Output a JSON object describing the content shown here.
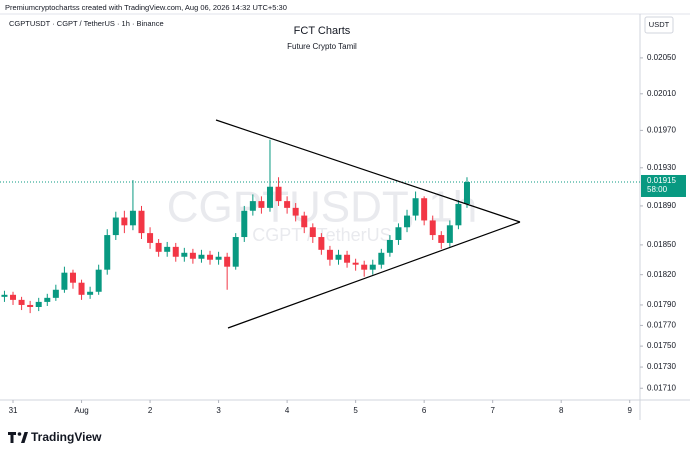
{
  "chart_data": {
    "type": "candlestick",
    "header": "Premiumcryptochartss created with TradingView.com, Aug 06, 2026 14:32 UTC+5:30",
    "symbol": "CGPTUSDT · CGPT / TetherUS · 1h · Binance",
    "title": "FCT Charts",
    "subtitle": "Future Crypto Tamil",
    "watermark": "CGPTUSDT, 1h",
    "watermark_sub": "CGPT / TetherUS",
    "currency": "USDT",
    "brand": "TradingView",
    "log_scale": true,
    "grid": false,
    "up_color": "#089981",
    "down_color": "#f23645",
    "xlim": [
      -0.19,
      9.15
    ],
    "xticks": [
      {
        "value": 0,
        "label": "31"
      },
      {
        "value": 1,
        "label": "Aug"
      },
      2,
      3,
      4,
      5,
      6,
      7,
      8,
      9
    ],
    "ylim": [
      0.01699,
      0.021
    ],
    "yticks": [
      {
        "value": 0.0205,
        "label": "0.02050"
      },
      {
        "value": 0.0201,
        "label": "0.02010"
      },
      {
        "value": 0.0197,
        "label": "0.01970"
      },
      {
        "value": 0.0193,
        "label": "0.01930"
      },
      {
        "value": 0.0189,
        "label": "0.01890"
      },
      {
        "value": 0.0185,
        "label": "0.01850"
      },
      {
        "value": 0.0182,
        "label": "0.01820"
      },
      {
        "value": 0.0179,
        "label": "0.01790"
      },
      {
        "value": 0.0177,
        "label": "0.01770"
      },
      {
        "value": 0.0175,
        "label": "0.01750"
      },
      {
        "value": 0.0173,
        "label": "0.01730"
      },
      {
        "value": 0.0171,
        "label": "0.01710"
      }
    ],
    "last_price": 0.01915,
    "last_price_label": "0.01915",
    "countdown": "58:00",
    "x": [
      -0.125,
      0,
      0.125,
      0.25,
      0.375,
      0.5,
      0.625,
      0.75,
      0.875,
      1,
      1.125,
      1.25,
      1.375,
      1.5,
      1.625,
      1.75,
      1.875,
      2,
      2.125,
      2.25,
      2.375,
      2.5,
      2.625,
      2.75,
      2.875,
      3,
      3.125,
      3.25,
      3.375,
      3.5,
      3.625,
      3.75,
      3.875,
      4,
      4.125,
      4.25,
      4.375,
      4.5,
      4.625,
      4.75,
      4.875,
      5,
      5.125,
      5.25,
      5.375,
      5.5,
      5.625,
      5.75,
      5.875,
      6,
      6.125,
      6.25,
      6.375,
      6.5,
      6.625
    ],
    "open": [
      0.01798,
      0.018,
      0.01795,
      0.0179,
      0.01788,
      0.01793,
      0.01797,
      0.01805,
      0.01822,
      0.01812,
      0.018,
      0.01803,
      0.01825,
      0.0186,
      0.01878,
      0.0187,
      0.01885,
      0.01862,
      0.01852,
      0.01843,
      0.01848,
      0.01838,
      0.01842,
      0.01836,
      0.0184,
      0.01835,
      0.01838,
      0.01828,
      0.01858,
      0.01885,
      0.01895,
      0.01888,
      0.0191,
      0.01895,
      0.01888,
      0.0188,
      0.01868,
      0.01858,
      0.01845,
      0.01835,
      0.0184,
      0.01832,
      0.0183,
      0.01825,
      0.0183,
      0.01842,
      0.01855,
      0.01868,
      0.0188,
      0.01898,
      0.01875,
      0.0186,
      0.01852,
      0.0187,
      0.01892
    ],
    "high": [
      0.01804,
      0.01803,
      0.01798,
      0.01794,
      0.01797,
      0.01801,
      0.0181,
      0.01828,
      0.01825,
      0.01815,
      0.01808,
      0.0183,
      0.01866,
      0.01884,
      0.01885,
      0.01917,
      0.0189,
      0.01868,
      0.01856,
      0.01853,
      0.01852,
      0.01847,
      0.01846,
      0.01845,
      0.01844,
      0.01843,
      0.01842,
      0.01862,
      0.0189,
      0.01902,
      0.019,
      0.0196,
      0.0192,
      0.019,
      0.01893,
      0.01884,
      0.01872,
      0.01862,
      0.01849,
      0.01845,
      0.01844,
      0.01836,
      0.01834,
      0.01835,
      0.01846,
      0.0186,
      0.01872,
      0.01886,
      0.01905,
      0.019,
      0.0188,
      0.01864,
      0.01875,
      0.01896,
      0.0192
    ],
    "low": [
      0.01793,
      0.0179,
      0.01785,
      0.01782,
      0.01784,
      0.01789,
      0.01794,
      0.01802,
      0.01806,
      0.01795,
      0.01796,
      0.018,
      0.0182,
      0.01855,
      0.01862,
      0.01865,
      0.01856,
      0.01846,
      0.01838,
      0.01838,
      0.01833,
      0.01833,
      0.01831,
      0.01832,
      0.0183,
      0.0183,
      0.01805,
      0.01825,
      0.01853,
      0.0188,
      0.01882,
      0.01884,
      0.0189,
      0.01882,
      0.01874,
      0.01862,
      0.01852,
      0.0184,
      0.01829,
      0.0183,
      0.01827,
      0.01824,
      0.01818,
      0.0182,
      0.01826,
      0.01838,
      0.0185,
      0.01863,
      0.01875,
      0.0187,
      0.01855,
      0.01846,
      0.01848,
      0.01866,
      0.01888
    ],
    "close": [
      0.018,
      0.01795,
      0.0179,
      0.01788,
      0.01793,
      0.01797,
      0.01805,
      0.01822,
      0.01812,
      0.018,
      0.01803,
      0.01825,
      0.0186,
      0.01878,
      0.0187,
      0.01885,
      0.01862,
      0.01852,
      0.01843,
      0.01848,
      0.01838,
      0.01842,
      0.01836,
      0.0184,
      0.01835,
      0.01838,
      0.01828,
      0.01858,
      0.01885,
      0.01895,
      0.01888,
      0.0191,
      0.01895,
      0.01888,
      0.0188,
      0.01868,
      0.01858,
      0.01845,
      0.01835,
      0.0184,
      0.01832,
      0.0183,
      0.01825,
      0.0183,
      0.01842,
      0.01855,
      0.01868,
      0.0188,
      0.01898,
      0.01875,
      0.0186,
      0.01852,
      0.0187,
      0.01892,
      0.01915
    ]
  }
}
